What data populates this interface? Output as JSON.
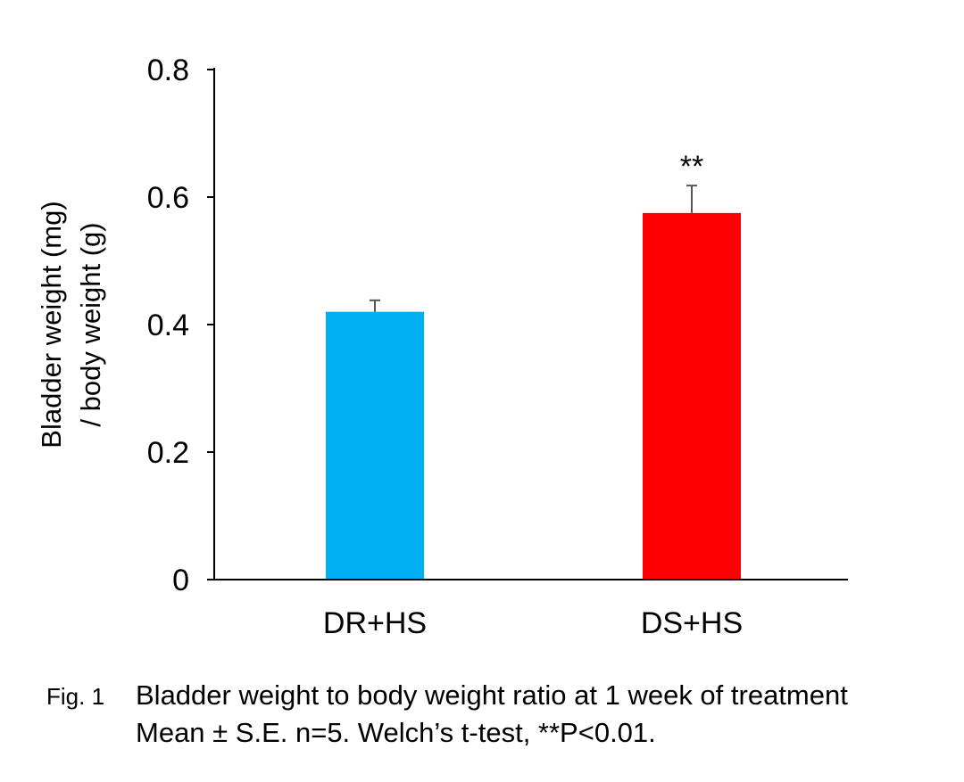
{
  "chart_data": {
    "type": "bar",
    "categories": [
      "DR+HS",
      "DS+HS"
    ],
    "values": [
      0.42,
      0.575
    ],
    "errors": [
      0.018,
      0.043
    ],
    "bar_colors": [
      "#00B0F0",
      "#FF0000"
    ],
    "annotations": [
      "",
      "**"
    ],
    "ylabel": [
      "Bladder weight (mg)",
      "/ body weight (g)"
    ],
    "xlabel": "",
    "ylim": [
      0,
      0.8
    ],
    "yticks": [
      0,
      0.2,
      0.4,
      0.6,
      0.8
    ],
    "ytick_labels": [
      "0",
      "0.2",
      "0.4",
      "0.6",
      "0.8"
    ],
    "grid": false,
    "legend": "none"
  },
  "caption": {
    "figure_label": "Fig. 1",
    "line1": "Bladder weight to body weight ratio at 1 week of treatment",
    "line2": "Mean ± S.E. n=5. Welch’s t-test, **P<0.01."
  }
}
